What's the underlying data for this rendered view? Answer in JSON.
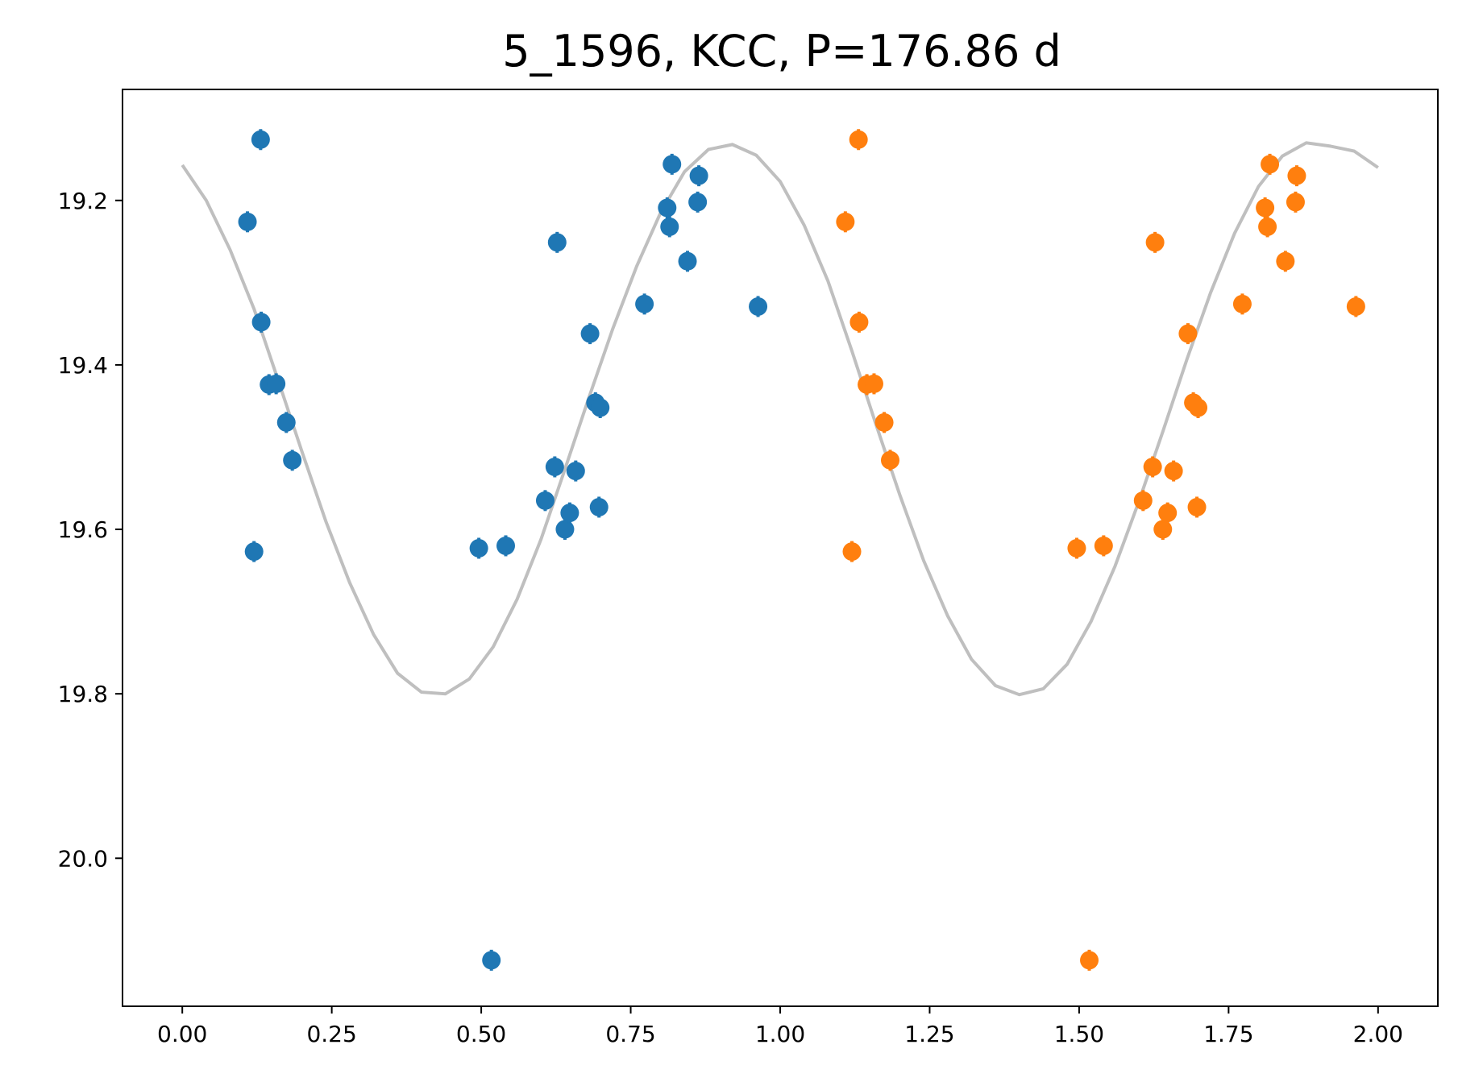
{
  "chart_data": {
    "type": "scatter",
    "title": "5_1596, KCC, P=176.86 d",
    "xlabel": "",
    "ylabel": "",
    "xlim": [
      -0.1,
      2.1
    ],
    "ylim": [
      20.18,
      19.065
    ],
    "y_inverted": true,
    "grid": false,
    "x_ticks": [
      "0.00",
      "0.25",
      "0.50",
      "0.75",
      "1.00",
      "1.25",
      "1.50",
      "1.75",
      "2.00"
    ],
    "y_ticks": [
      "19.2",
      "19.4",
      "19.6",
      "19.8",
      "20.0"
    ],
    "colors": {
      "phase_0_1": "#1f77b4",
      "phase_1_2": "#ff7f0e",
      "model": "#bfbfbf"
    },
    "series": [
      {
        "points": [
          [
            0.109,
            19.226
          ],
          [
            0.131,
            19.126
          ],
          [
            0.12,
            19.627
          ],
          [
            0.132,
            19.348
          ],
          [
            0.145,
            19.424
          ],
          [
            0.157,
            19.423
          ],
          [
            0.174,
            19.47
          ],
          [
            0.184,
            19.516
          ],
          [
            0.496,
            19.623
          ],
          [
            0.517,
            20.124
          ],
          [
            0.541,
            19.62
          ],
          [
            0.607,
            19.565
          ],
          [
            0.623,
            19.524
          ],
          [
            0.627,
            19.251
          ],
          [
            0.64,
            19.6
          ],
          [
            0.648,
            19.58
          ],
          [
            0.658,
            19.529
          ],
          [
            0.682,
            19.362
          ],
          [
            0.691,
            19.446
          ],
          [
            0.697,
            19.573
          ],
          [
            0.699,
            19.452
          ],
          [
            0.773,
            19.326
          ],
          [
            0.811,
            19.209
          ],
          [
            0.815,
            19.232
          ],
          [
            0.819,
            19.156
          ],
          [
            0.845,
            19.274
          ],
          [
            0.862,
            19.202
          ],
          [
            0.864,
            19.17
          ],
          [
            0.963,
            19.329
          ]
        ]
      },
      {
        "points": [
          [
            1.109,
            19.226
          ],
          [
            1.131,
            19.126
          ],
          [
            1.12,
            19.627
          ],
          [
            1.132,
            19.348
          ],
          [
            1.145,
            19.424
          ],
          [
            1.157,
            19.423
          ],
          [
            1.174,
            19.47
          ],
          [
            1.184,
            19.516
          ],
          [
            1.496,
            19.623
          ],
          [
            1.517,
            20.124
          ],
          [
            1.541,
            19.62
          ],
          [
            1.607,
            19.565
          ],
          [
            1.623,
            19.524
          ],
          [
            1.627,
            19.251
          ],
          [
            1.64,
            19.6
          ],
          [
            1.648,
            19.58
          ],
          [
            1.658,
            19.529
          ],
          [
            1.682,
            19.362
          ],
          [
            1.691,
            19.446
          ],
          [
            1.697,
            19.573
          ],
          [
            1.699,
            19.452
          ],
          [
            1.773,
            19.326
          ],
          [
            1.811,
            19.209
          ],
          [
            1.815,
            19.232
          ],
          [
            1.819,
            19.156
          ],
          [
            1.845,
            19.274
          ],
          [
            1.862,
            19.202
          ],
          [
            1.864,
            19.17
          ],
          [
            1.963,
            19.329
          ]
        ]
      }
    ],
    "model_curve": {
      "points": [
        [
          0.0,
          19.157
        ],
        [
          0.04,
          19.2
        ],
        [
          0.08,
          19.26
        ],
        [
          0.12,
          19.332
        ],
        [
          0.16,
          19.418
        ],
        [
          0.2,
          19.505
        ],
        [
          0.24,
          19.59
        ],
        [
          0.28,
          19.665
        ],
        [
          0.32,
          19.728
        ],
        [
          0.36,
          19.775
        ],
        [
          0.4,
          19.798
        ],
        [
          0.44,
          19.8
        ],
        [
          0.48,
          19.782
        ],
        [
          0.52,
          19.743
        ],
        [
          0.56,
          19.685
        ],
        [
          0.6,
          19.612
        ],
        [
          0.64,
          19.527
        ],
        [
          0.68,
          19.44
        ],
        [
          0.72,
          19.356
        ],
        [
          0.76,
          19.28
        ],
        [
          0.8,
          19.215
        ],
        [
          0.84,
          19.165
        ],
        [
          0.88,
          19.138
        ],
        [
          0.92,
          19.132
        ],
        [
          0.96,
          19.145
        ],
        [
          1.0,
          19.177
        ],
        [
          1.04,
          19.23
        ],
        [
          1.08,
          19.298
        ],
        [
          1.12,
          19.383
        ],
        [
          1.16,
          19.472
        ],
        [
          1.2,
          19.558
        ],
        [
          1.24,
          19.638
        ],
        [
          1.28,
          19.705
        ],
        [
          1.32,
          19.758
        ],
        [
          1.36,
          19.79
        ],
        [
          1.4,
          19.801
        ],
        [
          1.44,
          19.794
        ],
        [
          1.48,
          19.764
        ],
        [
          1.52,
          19.712
        ],
        [
          1.56,
          19.645
        ],
        [
          1.6,
          19.566
        ],
        [
          1.64,
          19.481
        ],
        [
          1.68,
          19.394
        ],
        [
          1.72,
          19.312
        ],
        [
          1.76,
          19.24
        ],
        [
          1.8,
          19.183
        ],
        [
          1.84,
          19.146
        ],
        [
          1.88,
          19.13
        ],
        [
          1.92,
          19.134
        ],
        [
          1.96,
          19.14
        ],
        [
          2.0,
          19.16
        ]
      ]
    }
  }
}
